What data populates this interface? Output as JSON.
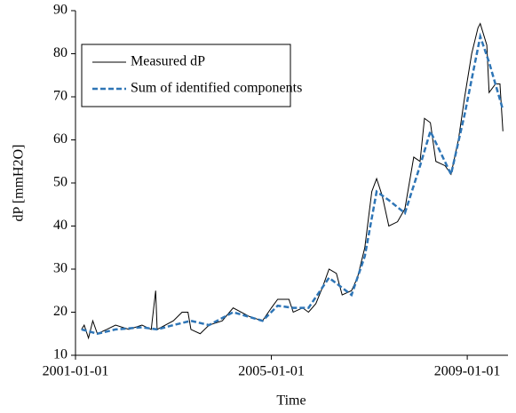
{
  "chart_data": {
    "type": "line",
    "xlabel": "Time",
    "ylabel": "dP [mmH2O]",
    "xlim": [
      "2001-01-01",
      "2009-11-01"
    ],
    "xticks": [
      "2001-01-01",
      "2005-01-01",
      "2009-01-01"
    ],
    "ylim": [
      10,
      90
    ],
    "yticks": [
      10,
      20,
      30,
      40,
      50,
      60,
      70,
      80,
      90
    ],
    "legend": "upper left",
    "grid": false,
    "series": [
      {
        "name": "Measured dP",
        "color": "#000000",
        "dash": false,
        "x": [
          "2001-02-15",
          "2001-03-07",
          "2001-04-08",
          "2001-05-10",
          "2001-06-13",
          "2001-08-22",
          "2001-10-27",
          "2002-02-03",
          "2002-05-12",
          "2002-07-20",
          "2002-08-22",
          "2002-09-02",
          "2003-01-01",
          "2003-03-07",
          "2003-04-20",
          "2003-05-12",
          "2003-07-20",
          "2003-09-24",
          "2004-01-01",
          "2004-03-22",
          "2004-07-20",
          "2004-10-27",
          "2005-01-01",
          "2005-02-17",
          "2005-05-12",
          "2005-06-13",
          "2005-08-22",
          "2005-10-05",
          "2005-11-29",
          "2006-01-20",
          "2006-03-07",
          "2006-05-01",
          "2006-06-13",
          "2006-08-22",
          "2006-10-05",
          "2006-11-29",
          "2007-01-20",
          "2007-02-25",
          "2007-04-08",
          "2007-05-27",
          "2007-07-31",
          "2007-09-24",
          "2007-11-29",
          "2008-01-15",
          "2008-02-17",
          "2008-04-01",
          "2008-05-12",
          "2008-07-20",
          "2008-09-02",
          "2008-10-27",
          "2008-12-13",
          "2009-02-03",
          "2009-03-22",
          "2009-04-08",
          "2009-05-27",
          "2009-06-13",
          "2009-07-31",
          "2009-09-02",
          "2009-09-24"
        ],
        "values": [
          16,
          17,
          14,
          18,
          15,
          16,
          17,
          16,
          17,
          16,
          25,
          16,
          18,
          20,
          20,
          16,
          15,
          17,
          18,
          21,
          19,
          18,
          21,
          23,
          23,
          20,
          21,
          20,
          22,
          26,
          30,
          29,
          24,
          25,
          28,
          35,
          48,
          51,
          47,
          40,
          41,
          44,
          56,
          55,
          65,
          64,
          55,
          54,
          52,
          60,
          70,
          80,
          86,
          87,
          82,
          71,
          73,
          73,
          62
        ]
      },
      {
        "name": "Sum of identified components",
        "color": "#2e75b6",
        "dash": true,
        "x": [
          "2001-02-15",
          "2001-06-13",
          "2001-10-27",
          "2002-05-12",
          "2002-09-02",
          "2003-01-01",
          "2003-05-12",
          "2003-09-24",
          "2004-03-22",
          "2004-10-27",
          "2005-02-17",
          "2005-06-13",
          "2005-10-05",
          "2006-03-07",
          "2006-08-22",
          "2006-11-29",
          "2007-02-25",
          "2007-05-27",
          "2007-09-24",
          "2008-01-15",
          "2008-04-01",
          "2008-09-02",
          "2008-12-13",
          "2009-04-08",
          "2009-06-13",
          "2009-09-24"
        ],
        "values": [
          16,
          15,
          16,
          16.5,
          16,
          17,
          18,
          17,
          20,
          18,
          21.5,
          21,
          21,
          28,
          24,
          33,
          48,
          46,
          43,
          54,
          62,
          52,
          66,
          84,
          78,
          67
        ]
      }
    ]
  }
}
